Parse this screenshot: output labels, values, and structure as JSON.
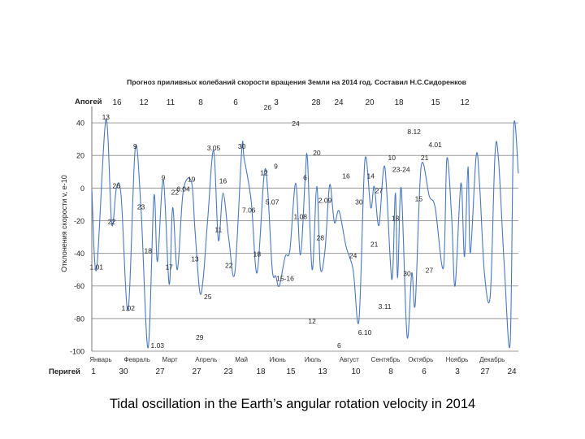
{
  "caption": "Tidal oscillation in the Earth’s angular rotation velocity in 2014",
  "chart_data": {
    "type": "line",
    "title": "Прогноз приливных колебаний скорости вращения Земли на 2014 год. Составил Н.С.Сидоренков",
    "ylabel": "Отклонения скорости v, e-10",
    "ylim": [
      -100,
      50
    ],
    "yticks": [
      40,
      20,
      0,
      -20,
      -40,
      -60,
      -80,
      -100
    ],
    "grid": true,
    "xlim": [
      1,
      365
    ],
    "months": [
      "Январь",
      "Февраль",
      "Март",
      "Апрель",
      "Май",
      "Июнь",
      "Июль",
      "Август",
      "Сентябрь",
      "Октябрь",
      "Ноябрь",
      "Декабрь"
    ],
    "apogee_label": "Апогей",
    "apogee_days": [
      "16",
      "12",
      "11",
      "8",
      "6",
      "3",
      "28",
      "24",
      "20",
      "18",
      "15",
      "12"
    ],
    "perigee_label": "Перигей",
    "perigee_days": [
      "1",
      "30",
      "27",
      "27",
      "23",
      "18",
      "15",
      "13",
      "10",
      "8",
      "6",
      "3",
      "27",
      "24"
    ],
    "series": [
      {
        "color": "#4a78c0",
        "x": [
          1,
          5,
          13,
          18,
          22,
          26,
          32,
          38,
          43,
          49,
          54,
          57,
          62,
          67,
          70,
          74,
          79,
          86,
          89,
          93,
          96,
          100,
          105,
          109,
          113,
          118,
          123,
          129,
          131,
          137,
          142,
          148,
          151,
          155,
          158,
          161,
          166,
          170,
          175,
          179,
          183,
          185,
          189,
          193,
          196,
          200,
          204,
          208,
          212,
          218,
          224,
          229,
          234,
          239,
          242,
          246,
          251,
          257,
          260,
          262,
          265,
          270,
          274,
          277,
          282,
          289,
          294,
          301,
          304,
          308,
          311,
          316,
          319,
          322,
          324,
          329,
          332,
          336,
          341,
          345,
          348,
          353,
          358,
          361,
          365
        ],
        "y": [
          -1,
          -50,
          42,
          -22,
          0,
          -5,
          -75,
          24,
          -13,
          -98,
          -5,
          -45,
          5,
          -59,
          -12,
          -50,
          -2,
          4,
          -25,
          -63,
          -56,
          -18,
          23,
          -32,
          -3,
          -32,
          -52,
          24,
          18,
          -8,
          -52,
          8,
          0,
          -50,
          -54,
          -60,
          -42,
          -38,
          3,
          -41,
          5,
          18,
          -50,
          1,
          -49,
          -38,
          2,
          -21,
          -14,
          -36,
          -50,
          -81,
          17,
          -12,
          1,
          -23,
          13,
          -56,
          -3,
          -55,
          0,
          -91,
          -52,
          -71,
          13,
          -5,
          -12,
          -49,
          18,
          -17,
          -60,
          3,
          -42,
          13,
          -40,
          20,
          1,
          -52,
          -66,
          20,
          18,
          -48,
          -95,
          37,
          9
        ],
        "point_labels": [
          {
            "x": 5,
            "y": -50,
            "text": "1.01"
          },
          {
            "x": 13,
            "y": 42,
            "text": "13"
          },
          {
            "x": 18,
            "y": -22,
            "text": "22"
          },
          {
            "x": 22,
            "y": 0,
            "text": "26"
          },
          {
            "x": 32,
            "y": -75,
            "text": "1.02"
          },
          {
            "x": 38,
            "y": 24,
            "text": "9"
          },
          {
            "x": 43,
            "y": -13,
            "text": "23"
          },
          {
            "x": 49,
            "y": -40,
            "text": "18"
          },
          {
            "x": 57,
            "y": -98,
            "text": "1.03"
          },
          {
            "x": 62,
            "y": 5,
            "text": "9"
          },
          {
            "x": 67,
            "y": -50,
            "text": "17"
          },
          {
            "x": 72,
            "y": -4,
            "text": "22"
          },
          {
            "x": 79,
            "y": -2,
            "text": "6.04"
          },
          {
            "x": 86,
            "y": 4,
            "text": "19"
          },
          {
            "x": 89,
            "y": -45,
            "text": "13"
          },
          {
            "x": 93,
            "y": -93,
            "text": "29"
          },
          {
            "x": 100,
            "y": -68,
            "text": "25"
          },
          {
            "x": 105,
            "y": 23,
            "text": "3.05"
          },
          {
            "x": 109,
            "y": -27,
            "text": "11"
          },
          {
            "x": 113,
            "y": 3,
            "text": "16"
          },
          {
            "x": 118,
            "y": -49,
            "text": "22"
          },
          {
            "x": 129,
            "y": 24,
            "text": "30"
          },
          {
            "x": 135,
            "y": -15,
            "text": "7.06"
          },
          {
            "x": 142,
            "y": -42,
            "text": "18"
          },
          {
            "x": 148,
            "y": 8,
            "text": "12"
          },
          {
            "x": 151,
            "y": 48,
            "text": "26"
          },
          {
            "x": 155,
            "y": -10,
            "text": "5.07"
          },
          {
            "x": 158,
            "y": 12,
            "text": "9"
          },
          {
            "x": 166,
            "y": -57,
            "text": "15-16"
          },
          {
            "x": 175,
            "y": 38,
            "text": "24"
          },
          {
            "x": 179,
            "y": -19,
            "text": "1.08"
          },
          {
            "x": 183,
            "y": 5,
            "text": "6"
          },
          {
            "x": 189,
            "y": -83,
            "text": "12"
          },
          {
            "x": 193,
            "y": 20,
            "text": "20"
          },
          {
            "x": 196,
            "y": -32,
            "text": "28"
          },
          {
            "x": 200,
            "y": -9,
            "text": "2.09"
          },
          {
            "x": 212,
            "y": -98,
            "text": "6"
          },
          {
            "x": 218,
            "y": 6,
            "text": "16"
          },
          {
            "x": 224,
            "y": -43,
            "text": "24"
          },
          {
            "x": 229,
            "y": -10,
            "text": "30"
          },
          {
            "x": 234,
            "y": -90,
            "text": "6.10"
          },
          {
            "x": 239,
            "y": 6,
            "text": "14"
          },
          {
            "x": 242,
            "y": -36,
            "text": "21"
          },
          {
            "x": 246,
            "y": -3,
            "text": "27"
          },
          {
            "x": 251,
            "y": -74,
            "text": "3.11"
          },
          {
            "x": 257,
            "y": 17,
            "text": "10"
          },
          {
            "x": 260,
            "y": -20,
            "text": "18"
          },
          {
            "x": 265,
            "y": 10,
            "text": "23-24"
          },
          {
            "x": 270,
            "y": -54,
            "text": "30"
          },
          {
            "x": 276,
            "y": 33,
            "text": "8.12"
          },
          {
            "x": 280,
            "y": -8,
            "text": "15"
          },
          {
            "x": 285,
            "y": 17,
            "text": "21"
          },
          {
            "x": 289,
            "y": -52,
            "text": "27"
          },
          {
            "x": 294,
            "y": 25,
            "text": "4.01"
          }
        ]
      }
    ]
  }
}
